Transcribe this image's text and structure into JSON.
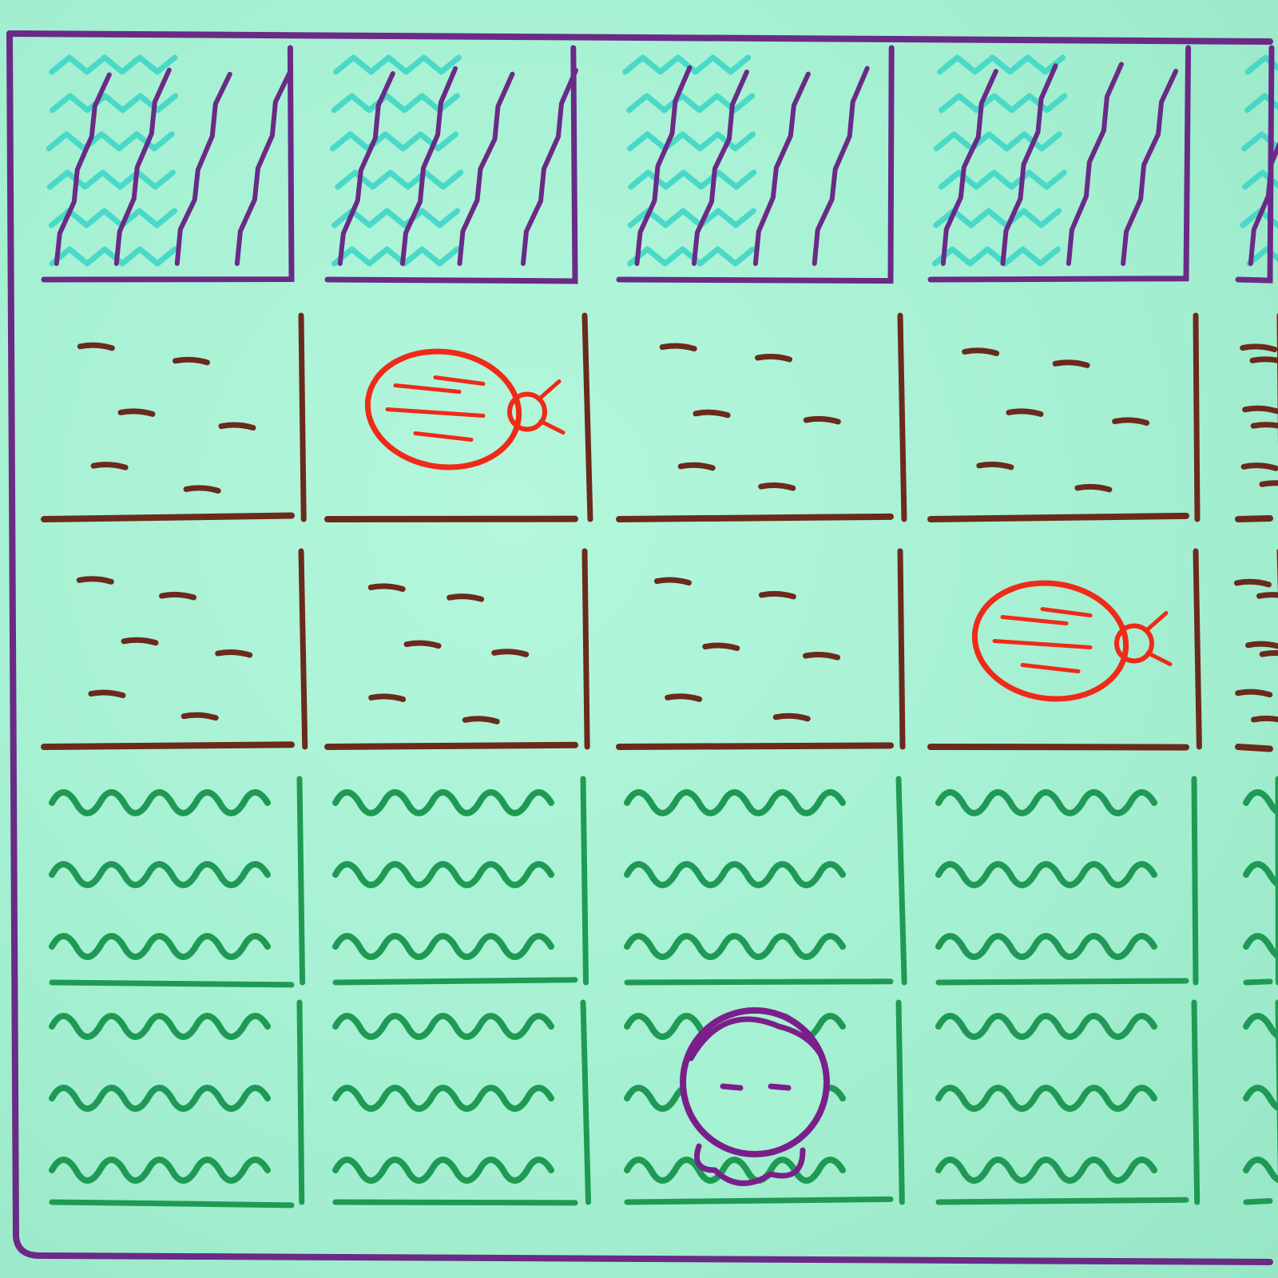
{
  "game": {
    "grid": {
      "cols": 5,
      "rows": 5,
      "visible_cols_partial_last": true
    },
    "rows": [
      [
        "water",
        "water",
        "water",
        "water",
        "water"
      ],
      [
        "dirt",
        "dirt",
        "dirt",
        "dirt",
        "dirt"
      ],
      [
        "dirt",
        "dirt",
        "dirt",
        "dirt",
        "dirt"
      ],
      [
        "grass",
        "grass",
        "grass",
        "grass",
        "grass"
      ],
      [
        "grass",
        "grass",
        "grass",
        "grass",
        "grass"
      ]
    ],
    "entities": [
      {
        "type": "ladybug",
        "row": 1,
        "col": 1,
        "facing": "right"
      },
      {
        "type": "ladybug",
        "row": 2,
        "col": 3,
        "facing": "right"
      },
      {
        "type": "player",
        "row": 4,
        "col": 2
      }
    ],
    "colors": {
      "paper": "#a6f2d3",
      "frame": "#6a2a86",
      "water_teal": "#3fd6c6",
      "water_purple": "#6a2a86",
      "dirt": "#6b2a1c",
      "grass": "#1f9a54",
      "ladybug": "#ef2a18",
      "player": "#7a1f8a"
    },
    "icons": {
      "water": "water-wave-icon",
      "dirt": "dirt-dash-icon",
      "grass": "grass-squiggle-icon",
      "ladybug": "ladybug-icon",
      "player": "player-head-icon"
    }
  }
}
